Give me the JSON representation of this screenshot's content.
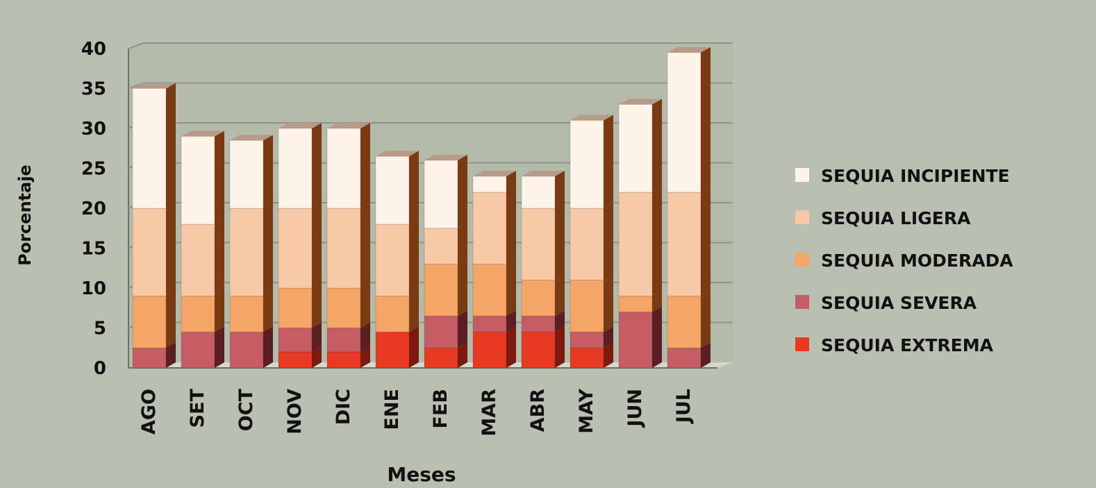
{
  "chart_data": {
    "type": "bar",
    "stacked": true,
    "style": "3d",
    "xlabel": "Meses",
    "ylabel": "Porcentaje",
    "ylim": [
      0,
      40
    ],
    "yticks": [
      0,
      5,
      10,
      15,
      20,
      25,
      30,
      35,
      40
    ],
    "grid": true,
    "legend_position": "right",
    "categories": [
      "AGO",
      "SET",
      "OCT",
      "NOV",
      "DIC",
      "ENE",
      "FEB",
      "MAR",
      "ABR",
      "MAY",
      "JUN",
      "JUL"
    ],
    "series": [
      {
        "name": "SEQUIA EXTREMA",
        "color": "#e83a22",
        "side": "#7d1a10",
        "values": [
          0,
          0,
          0,
          2,
          2,
          4.5,
          2.5,
          4.5,
          4.5,
          2.5,
          0,
          0
        ]
      },
      {
        "name": "SEQUIA SEVERA",
        "color": "#c65c64",
        "side": "#5b1e22",
        "values": [
          2.5,
          4.5,
          4.5,
          3,
          3,
          0,
          4,
          2,
          2,
          2,
          7,
          2.5
        ]
      },
      {
        "name": "SEQUIA MODERADA",
        "color": "#f5a565",
        "side": "#7a3a12",
        "values": [
          6.5,
          4.5,
          4.5,
          5,
          5,
          4.5,
          6.5,
          6.5,
          4.5,
          6.5,
          2,
          6.5
        ]
      },
      {
        "name": "SEQUIA LIGERA",
        "color": "#f8c9a7",
        "side": "#7a3a12",
        "values": [
          11,
          9,
          11,
          10,
          10,
          9,
          4.5,
          9,
          9,
          9,
          13,
          13
        ]
      },
      {
        "name": "SEQUIA INCIPIENTE",
        "color": "#fdf3e8",
        "side": "#7a3a12",
        "values": [
          15,
          11,
          8.5,
          10,
          10,
          8.5,
          8.5,
          2,
          4,
          11,
          11,
          17.5
        ]
      }
    ],
    "legend_order": [
      "SEQUIA INCIPIENTE",
      "SEQUIA LIGERA",
      "SEQUIA MODERADA",
      "SEQUIA SEVERA",
      "SEQUIA EXTREMA"
    ]
  },
  "colors": {
    "background": "#b9c0b1",
    "back_wall": "#b3bcab",
    "floor": "#d4d8ce",
    "grid": "#8d9686",
    "text": "#111111"
  }
}
